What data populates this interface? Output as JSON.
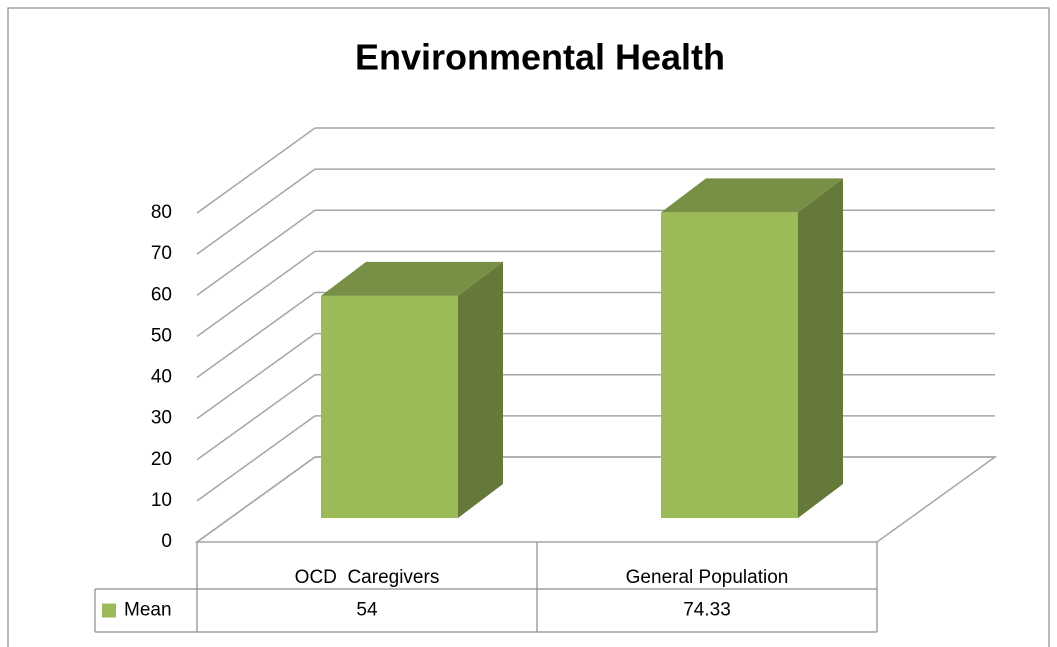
{
  "chart_data": {
    "type": "bar3d",
    "title": "Environmental Health",
    "categories": [
      "OCD  Caregivers",
      "General Population"
    ],
    "series": [
      {
        "name": "Mean",
        "color": "#9bbb59",
        "values": [
          54,
          74.33
        ]
      }
    ],
    "ylim": [
      0,
      80
    ],
    "yticks": [
      0,
      10,
      20,
      30,
      40,
      50,
      60,
      70,
      80
    ],
    "grid": true
  }
}
